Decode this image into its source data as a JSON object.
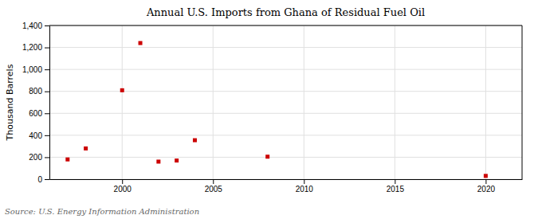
{
  "chart_data": {
    "type": "scatter",
    "title": "Annual U.S. Imports from Ghana of Residual Fuel Oil",
    "ylabel": "Thousand Barrels",
    "source": "Source: U.S. Energy Information Administration",
    "x": [
      1997,
      1998,
      2000,
      2001,
      2002,
      2003,
      2004,
      2008,
      2020
    ],
    "values": [
      180,
      280,
      810,
      1240,
      160,
      170,
      355,
      205,
      30
    ],
    "color": "#cc0000",
    "marker": "square",
    "xlim": [
      1996,
      2022
    ],
    "xticks": [
      2000,
      2005,
      2010,
      2015,
      2020
    ],
    "ylim": [
      0,
      1400
    ],
    "yticks": [
      0,
      200,
      400,
      600,
      800,
      {
        "value": 1000,
        "label": "1,000"
      },
      {
        "value": 1200,
        "label": "1,200"
      },
      {
        "value": 1400,
        "label": "1,400"
      }
    ],
    "grid": true
  }
}
